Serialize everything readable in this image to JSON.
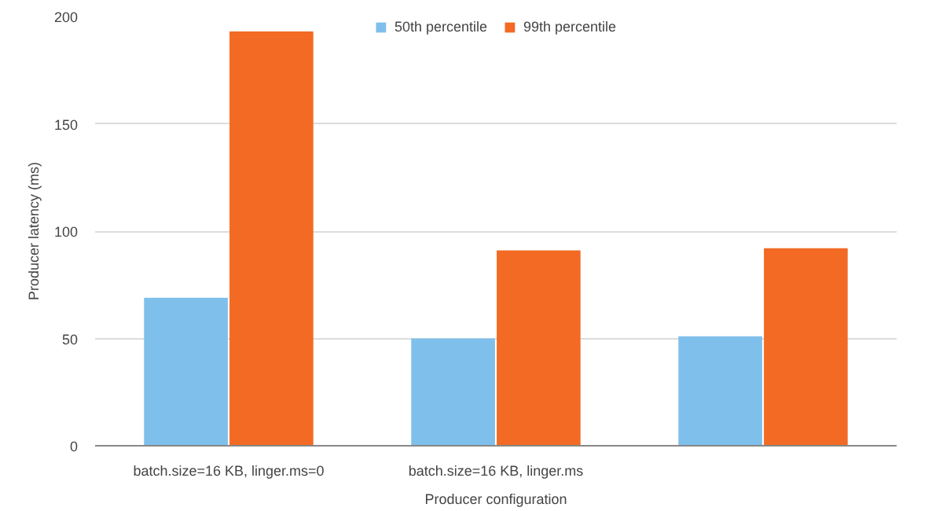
{
  "chart_data": {
    "type": "bar",
    "xlabel": "Producer configuration",
    "ylabel": "Producer latency (ms)",
    "categories": [
      "batch.size=16 KB, linger.ms=0",
      "batch.size=16 KB, linger.ms",
      null
    ],
    "series": [
      {
        "name": "50th percentile",
        "color": "#7fbfeb",
        "values": [
          69,
          50,
          51
        ]
      },
      {
        "name": "99th percentile",
        "color": "#f26a24",
        "values": [
          193,
          91,
          92
        ]
      }
    ],
    "ylim": [
      0,
      200
    ],
    "yticks": [
      0,
      50,
      100,
      150,
      200
    ],
    "grid": "y",
    "legend": "top"
  }
}
